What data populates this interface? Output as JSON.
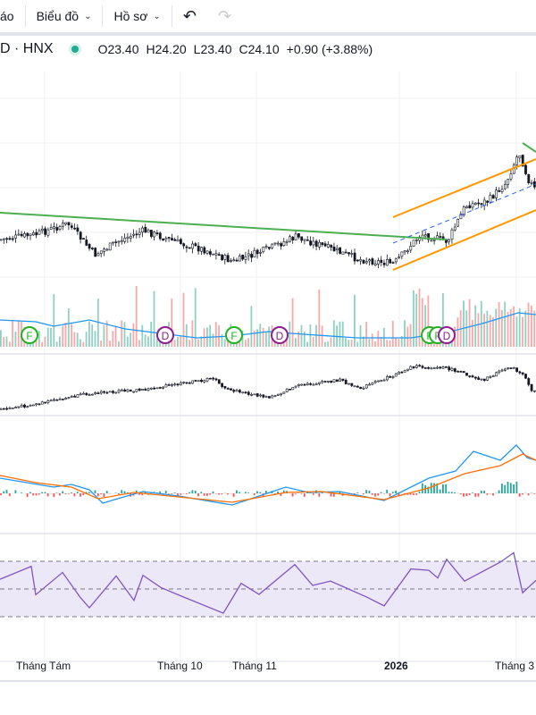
{
  "toolbar": {
    "partial_label": "áo",
    "chart_menu": "Biểu đồ",
    "profile_menu": "Hồ sơ",
    "undo_icon": "undo-icon",
    "redo_icon": "redo-icon"
  },
  "legend": {
    "symbol": "D · HNX",
    "status_color": "#22ab94",
    "open": "O23.40",
    "high": "H24.20",
    "low": "L23.40",
    "close": "C24.10",
    "change": "+0.90 (+3.88%)"
  },
  "markers": [
    {
      "label": "F",
      "color": "#22b222"
    },
    {
      "label": "D",
      "color": "#8e1f8e"
    },
    {
      "label": "F",
      "color": "#22b222"
    },
    {
      "label": "D",
      "color": "#8e1f8e"
    },
    {
      "label": "F",
      "color": "#22b222"
    },
    {
      "label": "F",
      "color": "#22b222"
    },
    {
      "label": "D",
      "color": "#8e1f8e"
    }
  ],
  "time_axis": [
    "Tháng Tám",
    "Tháng 10",
    "Tháng 11",
    "2026",
    "Tháng 3"
  ],
  "colors": {
    "up": "#22ab94",
    "down": "#f23645",
    "trendline": "#4caf50",
    "channel": "#ff9800",
    "macd": "#2196f3",
    "signal": "#ff6d00",
    "rsi": "#7e57c2",
    "volume_ma": "#2196f3"
  }
}
